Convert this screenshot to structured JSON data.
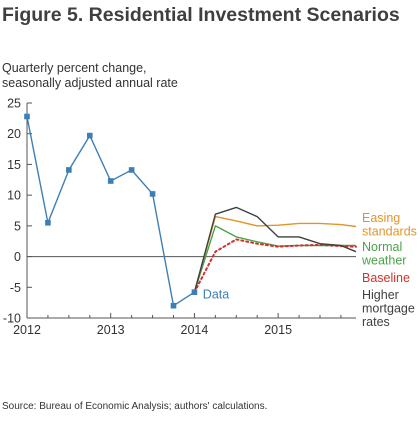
{
  "header": {
    "title": "Figure 5. Residential Investment Scenarios",
    "ylabel_line1": "Quarterly percent change,",
    "ylabel_line2": "seasonally adjusted annual rate",
    "source": "Source: Bureau of Economic Analysis; authors' calculations."
  },
  "chart_data": {
    "type": "line",
    "title": "Figure 5. Residential Investment Scenarios",
    "ylabel": "Quarterly percent change, seasonally adjusted annual rate",
    "xlabel": "",
    "ylim": [
      -10,
      25
    ],
    "xlim": [
      2012.0,
      2015.93
    ],
    "yticks": [
      25,
      20,
      15,
      10,
      5,
      0,
      -5,
      -10
    ],
    "xticks": [
      {
        "value": 2012,
        "label": "2012"
      },
      {
        "value": 2013,
        "label": "2013"
      },
      {
        "value": 2014,
        "label": "2014"
      },
      {
        "value": 2015,
        "label": "2015"
      }
    ],
    "grid": false,
    "zero_line": true,
    "series": [
      {
        "name": "Data",
        "color": "#3d7fb5",
        "style": "line-markers",
        "x": [
          2012.0,
          2012.25,
          2012.5,
          2012.75,
          2013.0,
          2013.25,
          2013.5,
          2013.75,
          2014.0
        ],
        "y": [
          22.8,
          5.5,
          14.1,
          19.7,
          12.3,
          14.1,
          10.2,
          -8.0,
          -5.8
        ]
      },
      {
        "name": "Easing standards",
        "color": "#e29527",
        "style": "solid",
        "x": [
          2014.0,
          2014.25,
          2014.5,
          2014.75,
          2015.0,
          2015.25,
          2015.5,
          2015.75,
          2015.93
        ],
        "y": [
          -5.8,
          6.5,
          5.8,
          5.0,
          5.1,
          5.4,
          5.4,
          5.2,
          4.9
        ]
      },
      {
        "name": "Normal weather",
        "color": "#4aa34a",
        "style": "solid",
        "x": [
          2014.0,
          2014.25,
          2014.5,
          2014.75,
          2015.0,
          2015.25,
          2015.5,
          2015.75,
          2015.93
        ],
        "y": [
          -5.8,
          5.0,
          3.2,
          2.4,
          1.7,
          1.8,
          1.8,
          1.8,
          1.8
        ]
      },
      {
        "name": "Baseline",
        "color": "#d0312d",
        "style": "dotted",
        "x": [
          2014.0,
          2014.25,
          2014.5,
          2014.75,
          2015.0,
          2015.25,
          2015.5,
          2015.75,
          2015.93
        ],
        "y": [
          -5.8,
          0.8,
          2.8,
          2.1,
          1.6,
          1.8,
          1.9,
          1.7,
          1.6
        ]
      },
      {
        "name": "Higher mortgage rates",
        "color": "#404040",
        "style": "solid",
        "x": [
          2014.0,
          2014.25,
          2014.5,
          2014.75,
          2015.0,
          2015.25,
          2015.5,
          2015.75,
          2015.93
        ],
        "y": [
          -5.8,
          6.9,
          8.0,
          6.5,
          3.2,
          3.2,
          2.1,
          1.8,
          0.8
        ]
      }
    ],
    "legend": {
      "placement": "right",
      "entries": [
        {
          "lines": [
            "Easing",
            "standards"
          ],
          "color": "#e29527",
          "series": "Easing standards"
        },
        {
          "lines": [
            "Normal",
            "weather"
          ],
          "color": "#4aa34a",
          "series": "Normal weather"
        },
        {
          "lines": [
            "Baseline"
          ],
          "color": "#d0312d",
          "series": "Baseline"
        },
        {
          "lines": [
            "Higher",
            "mortgage",
            "rates"
          ],
          "color": "#404040",
          "series": "Higher mortgage rates"
        }
      ],
      "data_label": {
        "text": "Data",
        "color": "#3d7fb5"
      }
    }
  }
}
